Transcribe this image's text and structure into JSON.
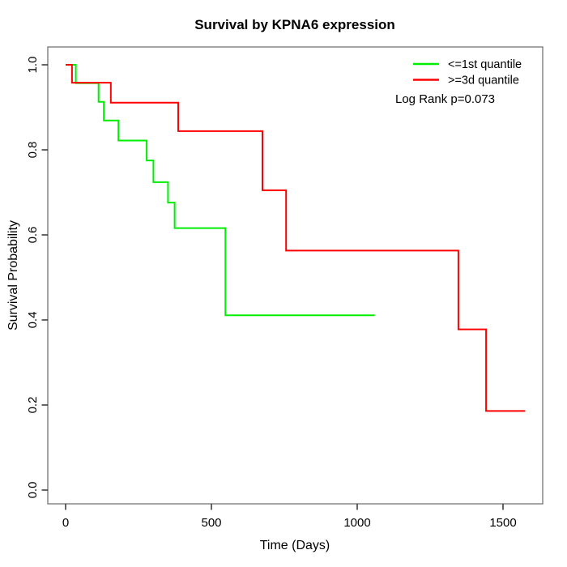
{
  "page": {
    "background": "#ffffff"
  },
  "chart_data": {
    "type": "line",
    "style": "kaplan-meier-step",
    "title": "Survival by KPNA6 expression",
    "xlabel": "Time (Days)",
    "ylabel": "Survival Probability",
    "xlim": [
      -60,
      1640
    ],
    "ylim": [
      0.0,
      1.0
    ],
    "x_ticks": [
      0,
      500,
      1000,
      1500
    ],
    "x_tick_labels": [
      "0",
      "500",
      "1000",
      "1500"
    ],
    "y_ticks": [
      0.0,
      0.2,
      0.4,
      0.6,
      0.8,
      1.0
    ],
    "y_tick_labels": [
      "0.0",
      "0.2",
      "0.4",
      "0.6",
      "0.8",
      "1.0"
    ],
    "grid": false,
    "legend_position": "top-right",
    "annotation": "Log Rank p=0.073",
    "series": [
      {
        "name": "<=1st quantile",
        "color": "#00ee00",
        "points": [
          [
            0,
            1.0
          ],
          [
            35,
            0.957
          ],
          [
            113,
            0.913
          ],
          [
            131,
            0.869
          ],
          [
            181,
            0.822
          ],
          [
            278,
            0.775
          ],
          [
            301,
            0.724
          ],
          [
            351,
            0.676
          ],
          [
            374,
            0.616
          ],
          [
            548,
            0.411
          ],
          [
            1060,
            0.411
          ]
        ]
      },
      {
        "name": ">=3d quantile",
        "color": "#ff0000",
        "points": [
          [
            0,
            1.0
          ],
          [
            22,
            0.958
          ],
          [
            155,
            0.911
          ],
          [
            386,
            0.844
          ],
          [
            675,
            0.705
          ],
          [
            756,
            0.563
          ],
          [
            1347,
            0.378
          ],
          [
            1442,
            0.186
          ],
          [
            1576,
            0.186
          ]
        ]
      }
    ],
    "axis_color": "#878787",
    "tick_color": "#333333",
    "text_color": "#000000"
  }
}
